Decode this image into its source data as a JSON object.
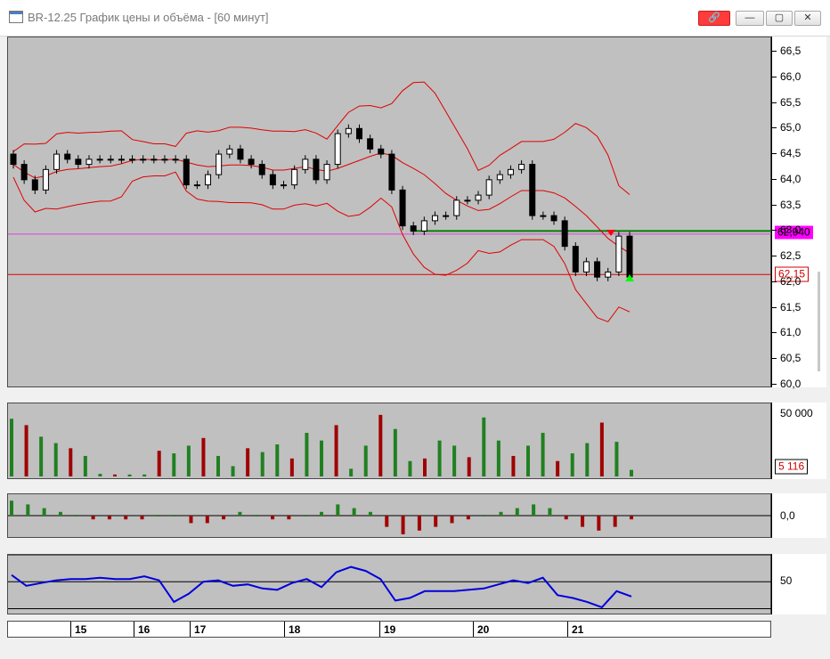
{
  "window": {
    "title": "BR-12.25 График цены и объёма - [60 минут]",
    "buttons": {
      "link": "🔗",
      "minimize": "—",
      "restore": "▢",
      "close": "✕"
    }
  },
  "price_axis": {
    "ticks": [
      "66,5",
      "66,0",
      "65,5",
      "65,0",
      "64,5",
      "64,0",
      "63,5",
      "63,0",
      "62,5",
      "62,0",
      "61,5",
      "61,0",
      "60,5",
      "60,0"
    ],
    "badge_top": "62,940",
    "badge_bottom": "62,15"
  },
  "volume_axis": {
    "top_label": "50 000",
    "current_label": "5 116"
  },
  "osc_axis": {
    "zero_label": "0,0"
  },
  "rsi_axis": {
    "mid_label": "50"
  },
  "time_axis": {
    "days": [
      "15",
      "16",
      "17",
      "18",
      "19",
      "20",
      "21"
    ]
  },
  "colors": {
    "pane_bg": "#c0c0c0",
    "bollinger": "#e00000",
    "up_candle": "#ffffff",
    "down_candle": "#000000",
    "support_line": "#008000",
    "magenta_line": "#e040e0",
    "volume_up": "#208020",
    "volume_down": "#a00000",
    "rsi_line": "#0000dd"
  },
  "chart_data": [
    {
      "type": "line",
      "title": "",
      "series": [
        {
          "name": "",
          "values": [
            64.3,
            64.0,
            63.8,
            64.2,
            64.5,
            64.4,
            64.3,
            64.4,
            64.4,
            64.4,
            64.4,
            64.4,
            64.4,
            64.4,
            64.4,
            64.4,
            63.9,
            63.9,
            64.1,
            64.5,
            64.6,
            64.4,
            64.3,
            64.1,
            63.9,
            63.9,
            64.2,
            64.4,
            64.0,
            64.3,
            64.9,
            65.0,
            64.8,
            64.6,
            64.5,
            63.8,
            63.1,
            63.0,
            63.2,
            63.3,
            63.3,
            63.6,
            63.6,
            63.7,
            64.0,
            64.1,
            64.2,
            64.3,
            63.3,
            63.3,
            63.2,
            62.7,
            62.2,
            62.4,
            62.1,
            62.2,
            62.9,
            62.1
          ]
        }
      ],
      "ylim": [
        60.0,
        66.5
      ]
    },
    {
      "type": "bar",
      "title": "",
      "series": [
        {
          "name": "",
          "values": [
            45000,
            40000,
            31000,
            26000,
            22000,
            16000,
            2000,
            1500,
            1500,
            1500,
            20000,
            18000,
            24000,
            30000,
            16000,
            8000,
            22000,
            19000,
            25000,
            14000,
            34000,
            28000,
            40000,
            6000,
            24000,
            48000,
            37000,
            12000,
            14000,
            28000,
            24000,
            15000,
            46000,
            28000,
            16000,
            24000,
            34000,
            12000,
            18000,
            26000,
            42000,
            27000,
            5116
          ]
        }
      ],
      "ylim": [
        0,
        50000
      ]
    },
    {
      "type": "bar",
      "title": "",
      "series": [
        {
          "name": "",
          "values": [
            4,
            3,
            2,
            1,
            0,
            -1,
            -1,
            -1,
            -1,
            0,
            0,
            -2,
            -2,
            -1,
            1,
            0,
            -1,
            -1,
            0,
            1,
            3,
            2,
            1,
            -3,
            -5,
            -4,
            -3,
            -2,
            -1,
            0,
            1,
            2,
            3,
            2,
            -1,
            -3,
            -4,
            -3,
            -1
          ]
        }
      ],
      "ylim": [
        -5,
        5
      ]
    },
    {
      "type": "line",
      "title": "",
      "series": [
        {
          "name": "",
          "values": [
            55,
            47,
            49,
            51,
            52,
            52,
            53,
            52,
            52,
            54,
            51,
            35,
            41,
            50,
            51,
            47,
            48,
            45,
            44,
            49,
            52,
            46,
            57,
            61,
            58,
            52,
            36,
            38,
            43,
            43,
            43,
            44,
            45,
            48,
            51,
            49,
            53,
            40,
            38,
            35,
            31,
            43,
            39
          ]
        }
      ],
      "ylim": [
        25,
        70
      ]
    }
  ]
}
